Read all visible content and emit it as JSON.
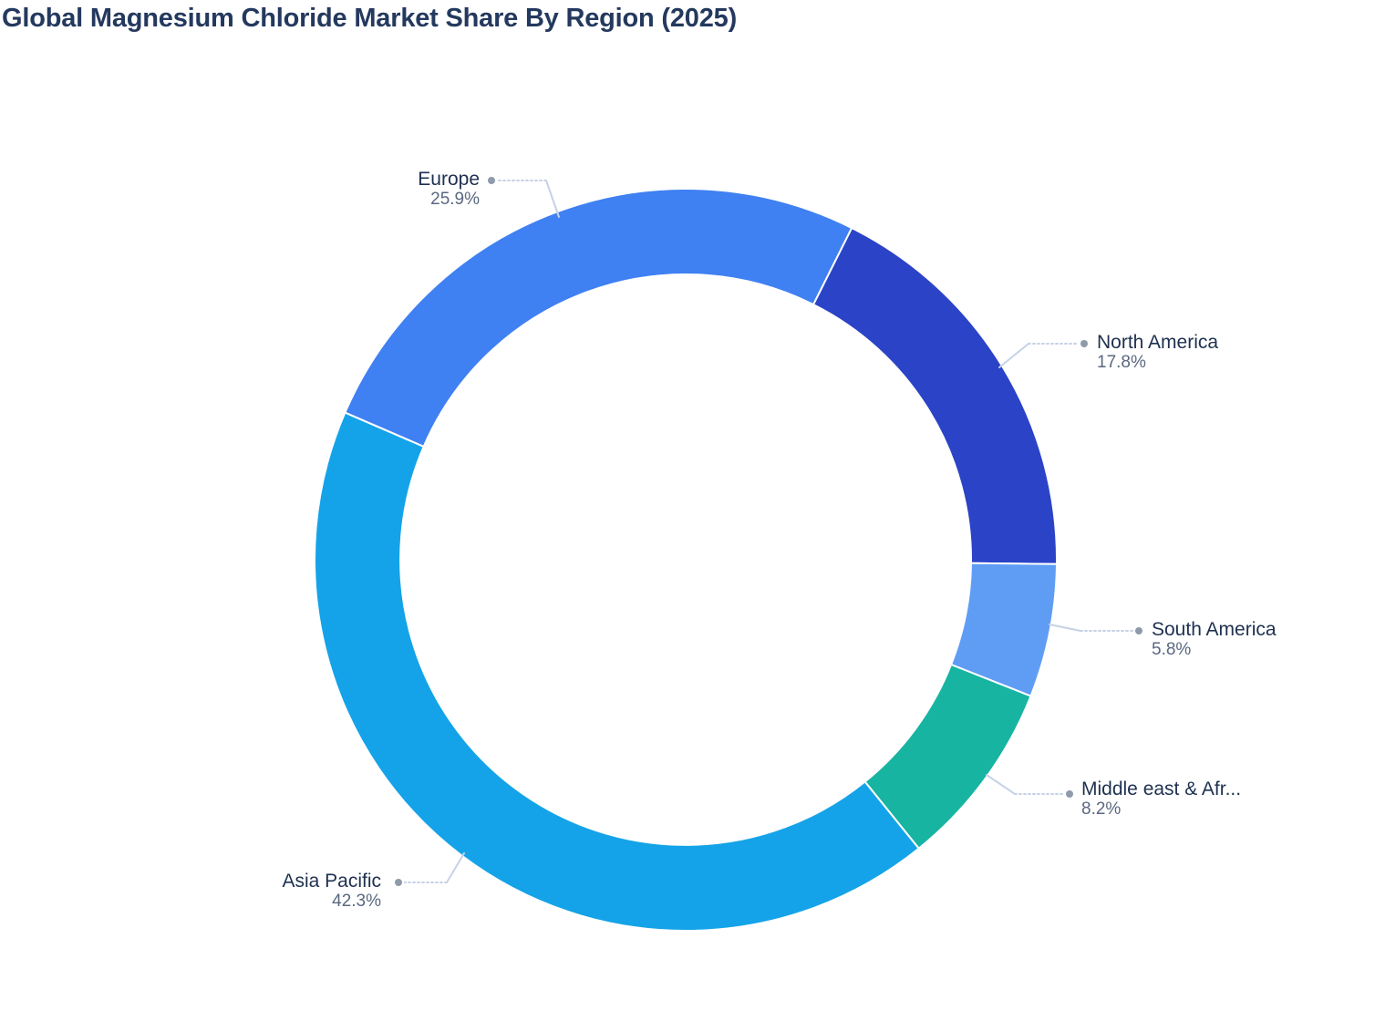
{
  "page": {
    "title": "Global Magnesium Chloride Market Share By Region (2025)"
  },
  "chart_data": {
    "type": "pie",
    "subtype": "donut",
    "title": "Global Magnesium Chloride Market Share By Region (2025)",
    "unit": "%",
    "direction": "clockwise",
    "start_angle_deg": 156.64,
    "inner_radius_ratio": 0.77,
    "legend_position": "none",
    "label_style": "outside-leader-lines",
    "series": [
      {
        "label": "Europe",
        "value": 25.9,
        "value_label": "25.9%",
        "color": "#3F80F2"
      },
      {
        "label": "North America",
        "value": 17.8,
        "value_label": "17.8%",
        "color": "#2B43C7"
      },
      {
        "label": "South America",
        "value": 5.8,
        "value_label": "5.8%",
        "color": "#5F9DF5"
      },
      {
        "label": "Middle east & Afr...",
        "value": 8.2,
        "value_label": "8.2%",
        "color": "#17B4A1"
      },
      {
        "label": "Asia Pacific",
        "value": 42.3,
        "value_label": "42.3%",
        "color": "#14A3E8"
      }
    ]
  },
  "style": {
    "slice_border_color": "#FFFFFF",
    "leader_line_color": "#C7D2E6",
    "leader_dot_color": "#8F9AAB",
    "title_color": "#24395E",
    "label_color": "#1E3050",
    "percent_color": "#5A6880"
  }
}
